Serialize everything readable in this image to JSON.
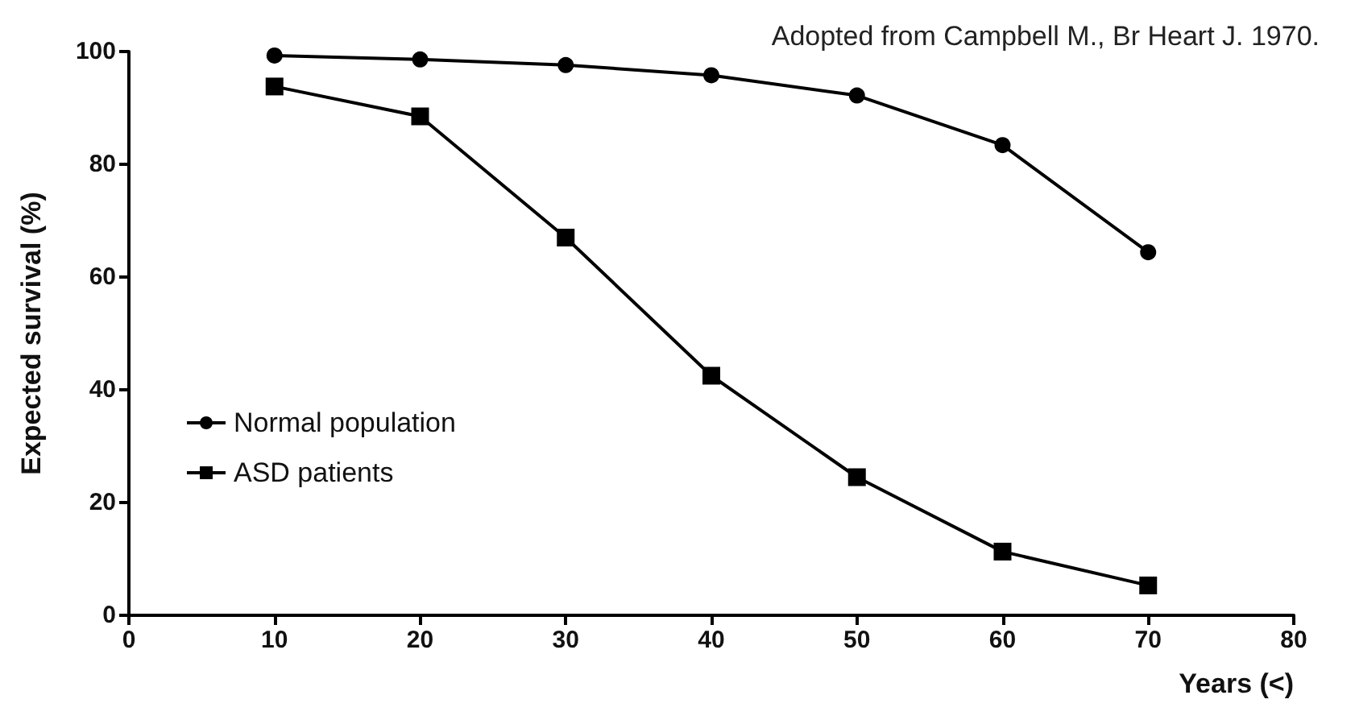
{
  "chart_data": {
    "type": "line",
    "xlabel": "Years (<)",
    "ylabel": "Expected survival (%)",
    "annotations": [
      "Adopted from Campbell M., Br Heart J. 1970."
    ],
    "x": [
      10,
      20,
      30,
      40,
      50,
      60,
      70
    ],
    "series": [
      {
        "name": "Normal population",
        "color": "#000000",
        "marker": "circle",
        "values": [
          99.3,
          98.6,
          97.6,
          95.8,
          92.2,
          83.4,
          64.4
        ]
      },
      {
        "name": "ASD patients",
        "color": "#000000",
        "marker": "square",
        "values": [
          93.8,
          88.5,
          67,
          42.5,
          24.5,
          11.3,
          5.3
        ]
      }
    ],
    "xlim": [
      0,
      80
    ],
    "xticks": [
      0,
      10,
      20,
      30,
      40,
      50,
      60,
      70,
      80
    ],
    "ylim": [
      0,
      100
    ],
    "yticks": [
      0,
      20,
      40,
      60,
      80,
      100
    ],
    "grid": false,
    "legend": "bottom left",
    "line_style": "solid"
  }
}
